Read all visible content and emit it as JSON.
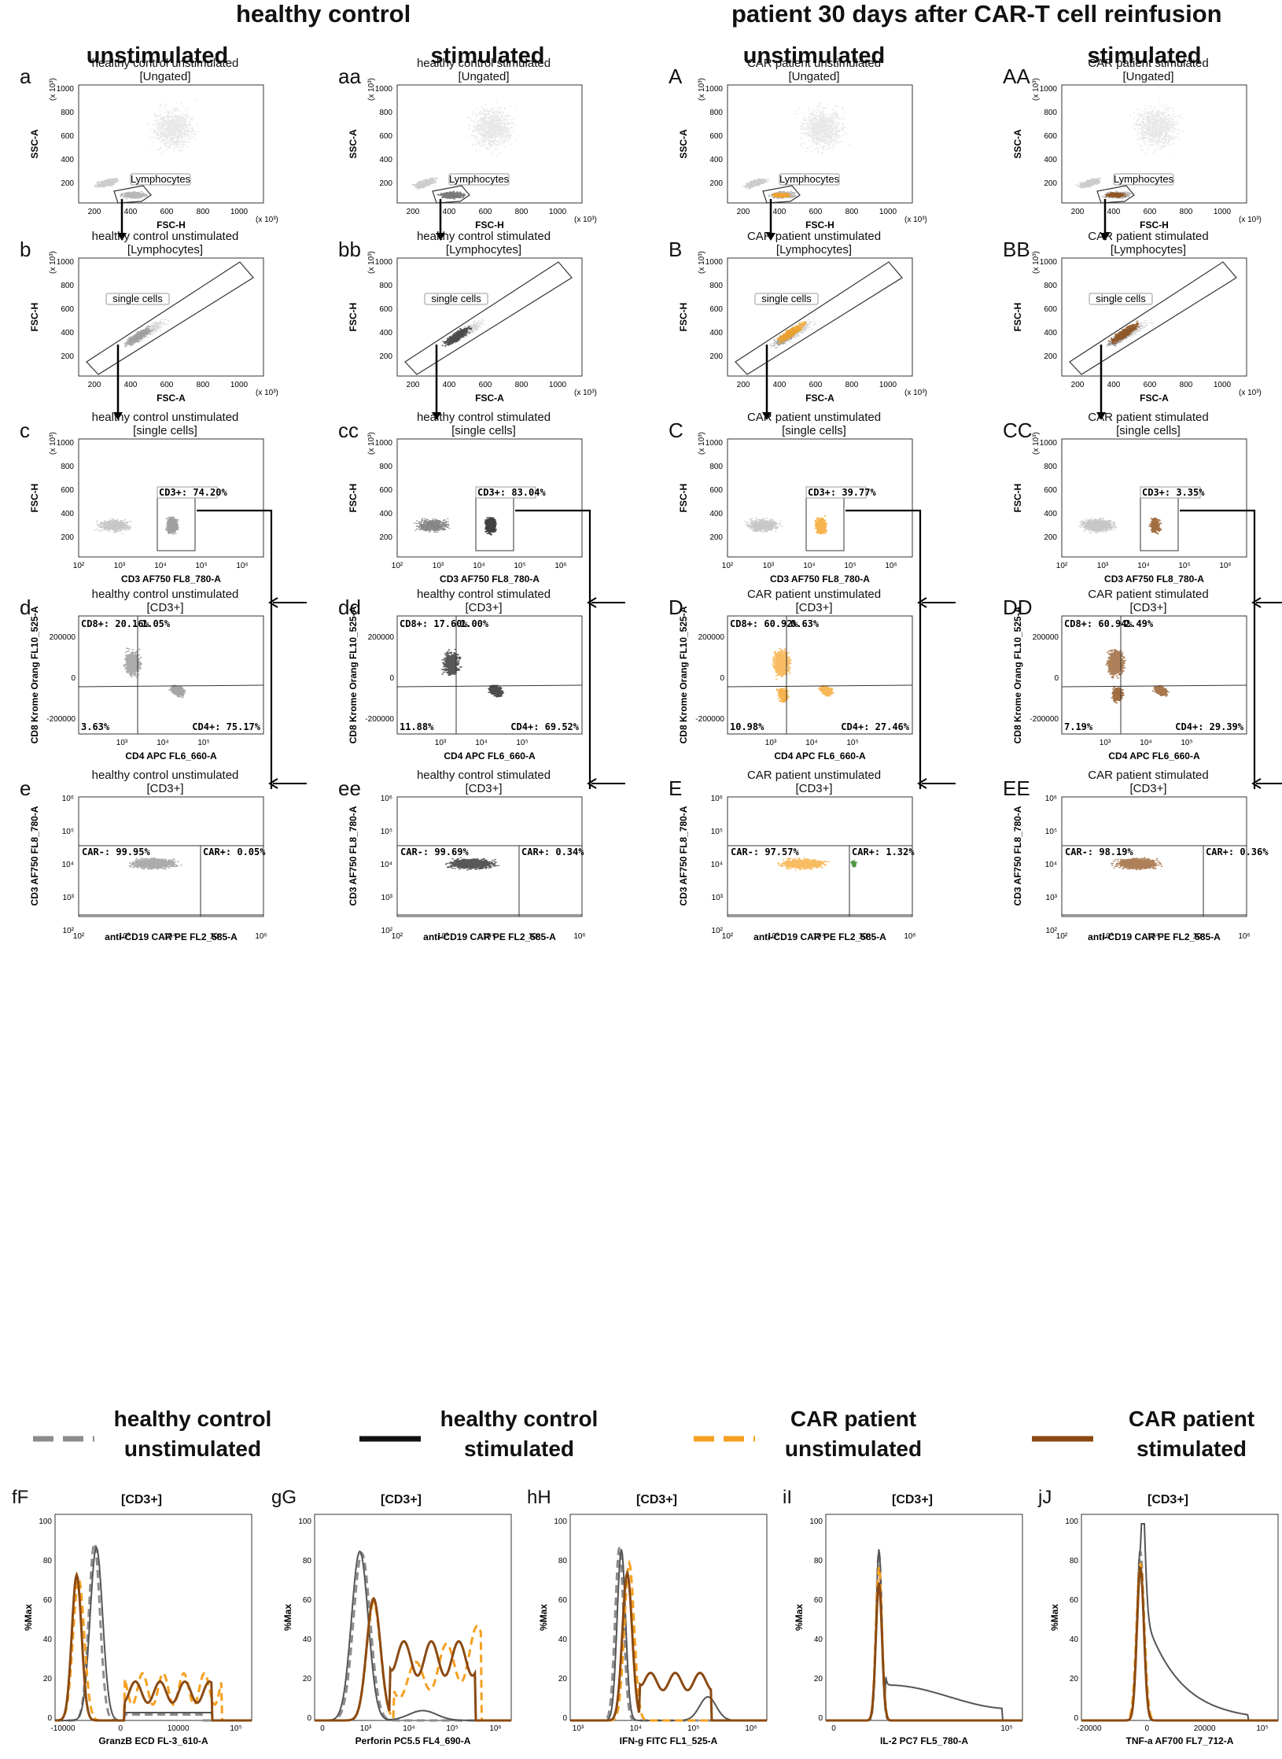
{
  "headers": {
    "left": "healthy control",
    "right": "patient 30 days after CAR-T cell reinfusion"
  },
  "subheaders": [
    "unstimulated",
    "stimulated",
    "unstimulated",
    "stimulated"
  ],
  "colors": {
    "hc_unstim": "#8c8c8c",
    "hc_stim": "#111111",
    "car_unstim": "#f5a020",
    "car_stim": "#8b4a12",
    "car_pos": "#3a8a2a"
  },
  "columns": [
    {
      "rows": {
        "a": {
          "letter": "a",
          "title1": "healthy control unstimulated",
          "title2": "[Ungated]",
          "xlabel": "FSC-H",
          "ylabel": "SSC-A",
          "gate": "Lymphocytes"
        },
        "b": {
          "letter": "b",
          "title1": "healthy control unstimulated",
          "title2": "[Lymphocytes]",
          "xlabel": "FSC-A",
          "ylabel": "FSC-H",
          "gate": "single cells"
        },
        "c": {
          "letter": "c",
          "title1": "healthy control unstimulated",
          "title2": "[single cells]",
          "xlabel": "CD3 AF750 FL8_780-A",
          "ylabel": "FSC-H",
          "gate": "CD3+: 74.20%"
        },
        "d": {
          "letter": "d",
          "title1": "healthy control unstimulated",
          "title2": "[CD3+]",
          "xlabel": "CD4 APC FL6_660-A",
          "ylabel": "CD8 Krome Orang FL10_525-A",
          "q_ul": "CD8+: 20.16%",
          "q_ur": "1.05%",
          "q_ll": "3.63%",
          "q_lr": "CD4+: 75.17%"
        },
        "e": {
          "letter": "e",
          "title1": "healthy control unstimulated",
          "title2": "[CD3+]",
          "xlabel": "anti-CD19 CAR PE FL2_585-A",
          "ylabel": "CD3 AF750 FL8_780-A",
          "g_left": "CAR-: 99.95%",
          "g_right": "CAR+: 0.05%"
        }
      }
    },
    {
      "rows": {
        "a": {
          "letter": "aa",
          "title1": "healthy control stimulated",
          "title2": "[Ungated]",
          "xlabel": "FSC-H",
          "ylabel": "SSC-A",
          "gate": "Lymphocytes"
        },
        "b": {
          "letter": "bb",
          "title1": "healthy control stimulated",
          "title2": "[Lymphocytes]",
          "xlabel": "FSC-A",
          "ylabel": "FSC-H",
          "gate": "single cells"
        },
        "c": {
          "letter": "cc",
          "title1": "healthy control stimulated",
          "title2": "[single cells]",
          "xlabel": "CD3 AF750 FL8_780-A",
          "ylabel": "FSC-H",
          "gate": "CD3+: 83.04%"
        },
        "d": {
          "letter": "dd",
          "title1": "healthy control stimulated",
          "title2": "[CD3+]",
          "xlabel": "CD4 APC FL6_660-A",
          "ylabel": "CD8 Krome Orang FL10_525-A",
          "q_ul": "CD8+: 17.60%",
          "q_ur": "1.00%",
          "q_ll": "11.88%",
          "q_lr": "CD4+: 69.52%"
        },
        "e": {
          "letter": "ee",
          "title1": "healthy control stimulated",
          "title2": "[CD3+]",
          "xlabel": "anti-CD19 CAR PE FL2_585-A",
          "ylabel": "CD3 AF750 FL8_780-A",
          "g_left": "CAR-: 99.69%",
          "g_right": "CAR+: 0.34%"
        }
      }
    },
    {
      "rows": {
        "a": {
          "letter": "A",
          "title1": "CAR patient unstimulated",
          "title2": "[Ungated]",
          "xlabel": "FSC-H",
          "ylabel": "SSC-A",
          "gate": "Lymphocytes"
        },
        "b": {
          "letter": "B",
          "title1": "CAR patient unstimulated",
          "title2": "[Lymphocytes]",
          "xlabel": "FSC-A",
          "ylabel": "FSC-H",
          "gate": "single cells"
        },
        "c": {
          "letter": "C",
          "title1": "CAR patient unstimulated",
          "title2": "[single cells]",
          "xlabel": "CD3 AF750 FL8_780-A",
          "ylabel": "FSC-H",
          "gate": "CD3+: 39.77%"
        },
        "d": {
          "letter": "D",
          "title1": "CAR patient unstimulated",
          "title2": "[CD3+]",
          "xlabel": "CD4 APC FL6_660-A",
          "ylabel": "CD8 Krome Orang FL10_525-A",
          "q_ul": "CD8+: 60.92%",
          "q_ur": "0.63%",
          "q_ll": "10.98%",
          "q_lr": "CD4+: 27.46%"
        },
        "e": {
          "letter": "E",
          "title1": "CAR patient unstimulated",
          "title2": "[CD3+]",
          "xlabel": "anti-CD19 CAR PE FL2_585-A",
          "ylabel": "CD3 AF750 FL8_780-A",
          "g_left": "CAR-: 97.57%",
          "g_right": "CAR+: 1.32%"
        }
      }
    },
    {
      "rows": {
        "a": {
          "letter": "AA",
          "title1": "CAR patient stimulated",
          "title2": "[Ungated]",
          "xlabel": "FSC-H",
          "ylabel": "SSC-A",
          "gate": "Lymphocytes"
        },
        "b": {
          "letter": "BB",
          "title1": "CAR patient stimulated",
          "title2": "[Lymphocytes]",
          "xlabel": "FSC-A",
          "ylabel": "FSC-H",
          "gate": "single cells"
        },
        "c": {
          "letter": "CC",
          "title1": "CAR patient stimulated",
          "title2": "[single cells]",
          "xlabel": "CD3 AF750 FL8_780-A",
          "ylabel": "FSC-H",
          "gate": "CD3+: 3.35%"
        },
        "d": {
          "letter": "DD",
          "title1": "CAR patient stimulated",
          "title2": "[CD3+]",
          "xlabel": "CD4 APC FL6_660-A",
          "ylabel": "CD8 Krome Orang FL10_525-A",
          "q_ul": "CD8+: 60.94%",
          "q_ur": "2.49%",
          "q_ll": "7.19%",
          "q_lr": "CD4+: 29.39%"
        },
        "e": {
          "letter": "EE",
          "title1": "CAR patient stimulated",
          "title2": "[CD3+]",
          "xlabel": "anti-CD19 CAR PE FL2_585-A",
          "ylabel": "CD3 AF750 FL8_780-A",
          "g_left": "CAR-: 98.19%",
          "g_right": "CAR+: 0.36%"
        }
      }
    }
  ],
  "ticks": {
    "lin": [
      "200",
      "400",
      "600",
      "800",
      "1000"
    ],
    "lin_unit": "(x 10³)",
    "log": [
      "10²",
      "10³",
      "10⁴",
      "10⁵",
      "10⁶"
    ],
    "d_y": [
      "200000",
      "0",
      "-200000"
    ]
  },
  "legend": [
    {
      "label1": "healthy control",
      "label2": "unstimulated",
      "style": "dashed",
      "color": "#8c8c8c"
    },
    {
      "label1": "healthy control",
      "label2": "stimulated",
      "style": "solid",
      "color": "#111111"
    },
    {
      "label1": "CAR patient",
      "label2": "unstimulated",
      "style": "dashed",
      "color": "#f5a020"
    },
    {
      "label1": "CAR patient",
      "label2": "stimulated",
      "style": "solid",
      "color": "#8b4a12"
    }
  ],
  "histograms": [
    {
      "letter": "fF",
      "title": "[CD3+]",
      "xlabel": "GranzB ECD FL-3_610-A",
      "ylabel": "%Max",
      "xticks": [
        "-10000",
        "0",
        "10000",
        "10⁵"
      ]
    },
    {
      "letter": "gG",
      "title": "[CD3+]",
      "xlabel": "Perforin PC5.5 FL4_690-A",
      "ylabel": "%Max",
      "xticks": [
        "0",
        "10³",
        "10⁴",
        "10⁵",
        "10⁶"
      ]
    },
    {
      "letter": "hH",
      "title": "[CD3+]",
      "xlabel": "IFN-g FITC FL1_525-A",
      "ylabel": "%Max",
      "xticks": [
        "10³",
        "10⁴",
        "10⁵",
        "10⁶"
      ]
    },
    {
      "letter": "iI",
      "title": "[CD3+]",
      "xlabel": "IL-2 PC7 FL5_780-A",
      "ylabel": "%Max",
      "xticks": [
        "0",
        "10⁵"
      ]
    },
    {
      "letter": "jJ",
      "title": "[CD3+]",
      "xlabel": "TNF-a AF700 FL7_712-A",
      "ylabel": "%Max",
      "xticks": [
        "-20000",
        "0",
        "20000",
        "10⁵"
      ]
    }
  ],
  "hist_yticks": [
    "100",
    "80",
    "60",
    "40",
    "20",
    "0"
  ]
}
